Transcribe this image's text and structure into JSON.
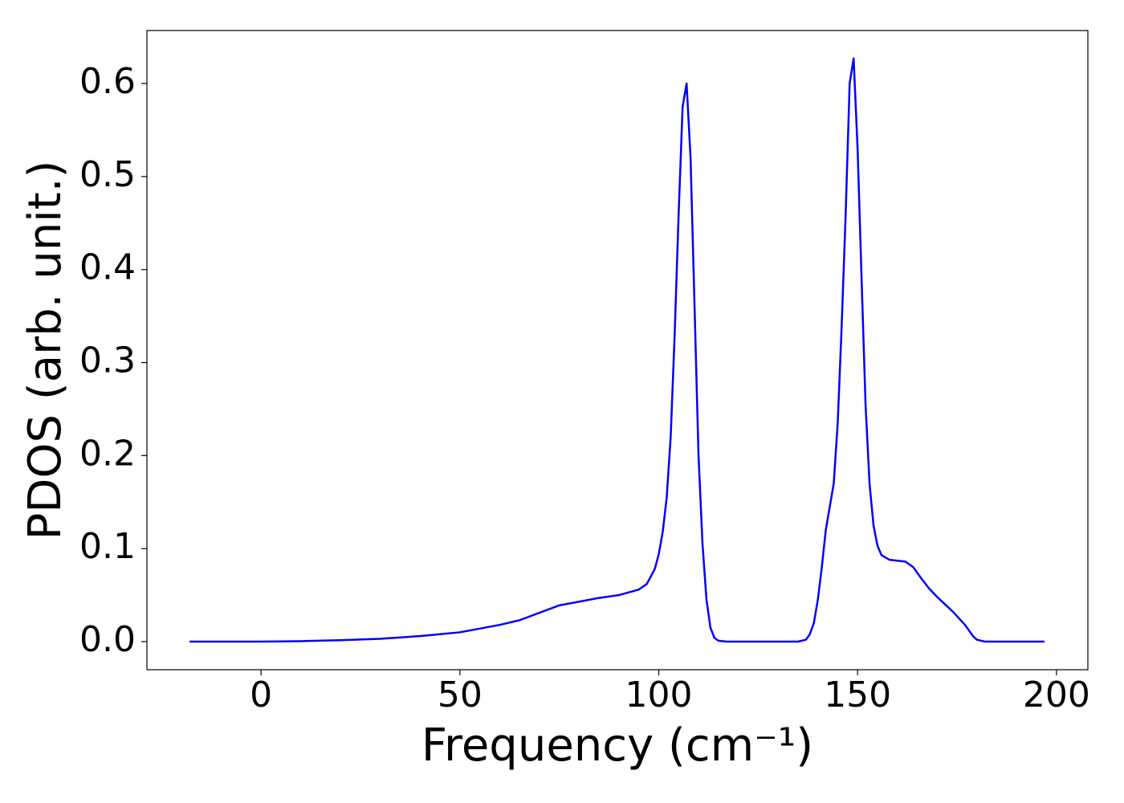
{
  "chart_data": {
    "type": "line",
    "xlabel": "Frequency (cm⁻¹)",
    "ylabel": "PDOS (arb. unit.)",
    "x": [
      -18,
      0,
      10,
      20,
      30,
      40,
      50,
      55,
      60,
      65,
      70,
      75,
      80,
      85,
      90,
      95,
      97,
      99,
      100,
      101,
      102,
      103,
      104,
      105,
      106,
      107,
      108,
      109,
      110,
      111,
      112,
      113,
      114,
      115,
      117,
      125,
      135,
      137,
      138,
      139,
      140,
      141,
      142,
      144,
      145,
      146,
      147,
      148,
      149,
      150,
      151,
      152,
      153,
      154,
      155,
      156,
      158,
      160,
      162,
      164,
      166,
      168,
      170,
      174,
      177,
      179,
      180,
      182,
      197
    ],
    "series": [
      {
        "color": "#0000ff",
        "values": [
          0,
          0,
          0.0005,
          0.0015,
          0.003,
          0.006,
          0.01,
          0.014,
          0.018,
          0.023,
          0.031,
          0.039,
          0.043,
          0.047,
          0.05,
          0.056,
          0.062,
          0.078,
          0.094,
          0.118,
          0.155,
          0.22,
          0.33,
          0.46,
          0.575,
          0.6,
          0.52,
          0.36,
          0.2,
          0.105,
          0.045,
          0.015,
          0.004,
          0.001,
          0,
          0,
          0,
          0.002,
          0.008,
          0.02,
          0.045,
          0.08,
          0.12,
          0.17,
          0.235,
          0.34,
          0.46,
          0.6,
          0.627,
          0.53,
          0.39,
          0.255,
          0.17,
          0.125,
          0.103,
          0.093,
          0.088,
          0.087,
          0.086,
          0.08,
          0.068,
          0.057,
          0.048,
          0.032,
          0.018,
          0.006,
          0.002,
          0,
          0
        ]
      }
    ],
    "xlim": [
      -28.7,
      207.9
    ],
    "ylim": [
      -0.0302,
      0.657
    ],
    "xticks": [
      0,
      50,
      100,
      150,
      200
    ],
    "yticks": [
      {
        "value": 0,
        "label": "0.0"
      },
      0.1,
      0.2,
      0.3,
      0.4,
      0.5,
      0.6
    ],
    "grid": false
  }
}
